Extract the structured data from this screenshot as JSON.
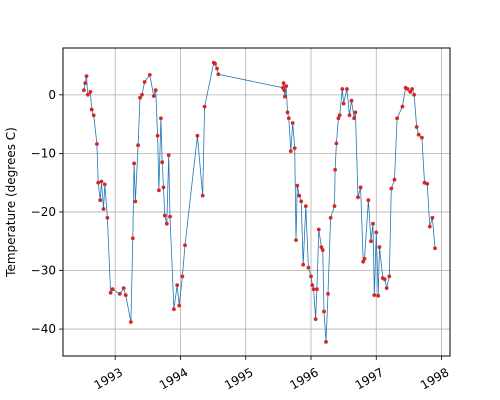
{
  "chart_data": {
    "type": "line",
    "title": "",
    "xlabel": "",
    "ylabel": "Temperature (degrees C)",
    "grid": true,
    "xlim": [
      1992.2,
      1998.13
    ],
    "ylim": [
      -44.6,
      8
    ],
    "x_ticks": [
      {
        "value": 1993,
        "label": "1993"
      },
      {
        "value": 1994,
        "label": "1994"
      },
      {
        "value": 1995,
        "label": "1995"
      },
      {
        "value": 1996,
        "label": "1996"
      },
      {
        "value": 1997,
        "label": "1997"
      },
      {
        "value": 1998,
        "label": "1998"
      }
    ],
    "y_ticks": [
      {
        "value": 0,
        "label": "0"
      },
      {
        "value": -10,
        "label": "−10"
      },
      {
        "value": -20,
        "label": "−20"
      },
      {
        "value": -30,
        "label": "−30"
      },
      {
        "value": -40,
        "label": "−40"
      }
    ],
    "line_color": "#1f77b4",
    "marker_color": "#d62728",
    "series": [
      {
        "x": [
          1992.52,
          1992.54,
          1992.56,
          1992.58,
          1992.62,
          1992.64,
          1992.67,
          1992.72,
          1992.74,
          1992.77,
          1992.79,
          1992.82,
          1992.84,
          1992.88,
          1992.93,
          1992.96,
          1993.07,
          1993.13,
          1993.16,
          1993.24,
          1993.27,
          1993.29,
          1993.31,
          1993.35,
          1993.38,
          1993.41,
          1993.45,
          1993.53,
          1993.59,
          1993.62,
          1993.65,
          1993.67,
          1993.7,
          1993.72,
          1993.74,
          1993.76,
          1993.79,
          1993.82,
          1993.84,
          1993.9,
          1993.95,
          1993.98,
          1994.03,
          1994.07,
          1994.26,
          1994.34,
          1994.37,
          1994.51,
          1994.53,
          1994.56,
          1994.58,
          1995.57,
          1995.58,
          1995.59,
          1995.6,
          1995.62,
          1995.64,
          1995.66,
          1995.69,
          1995.72,
          1995.75,
          1995.77,
          1995.79,
          1995.82,
          1995.85,
          1995.88,
          1995.92,
          1995.96,
          1996.0,
          1996.02,
          1996.04,
          1996.07,
          1996.09,
          1996.12,
          1996.16,
          1996.18,
          1996.2,
          1996.23,
          1996.26,
          1996.3,
          1996.36,
          1996.37,
          1996.39,
          1996.42,
          1996.44,
          1996.48,
          1996.5,
          1996.55,
          1996.59,
          1996.62,
          1996.66,
          1996.68,
          1996.72,
          1996.76,
          1996.8,
          1996.82,
          1996.88,
          1996.92,
          1996.95,
          1996.97,
          1997.0,
          1997.03,
          1997.05,
          1997.1,
          1997.13,
          1997.16,
          1997.2,
          1997.23,
          1997.28,
          1997.32,
          1997.4,
          1997.45,
          1997.48,
          1997.52,
          1997.55,
          1997.58,
          1997.62,
          1997.65,
          1997.7,
          1997.74,
          1997.78,
          1997.82,
          1997.86,
          1997.9
        ],
        "y": [
          0.8,
          2.0,
          3.2,
          0.0,
          0.5,
          -2.5,
          -3.5,
          -8.4,
          -15.0,
          -18.0,
          -14.8,
          -19.5,
          -15.3,
          -21.0,
          -33.8,
          -33.2,
          -34.0,
          -33.0,
          -34.2,
          -38.8,
          -24.5,
          -11.7,
          -18.2,
          -8.6,
          -0.5,
          0.0,
          2.2,
          3.4,
          -0.2,
          0.8,
          -7.0,
          -16.3,
          -4.0,
          -11.5,
          -15.8,
          -20.6,
          -22.0,
          -10.3,
          -20.8,
          -36.6,
          -32.5,
          -36.0,
          -31.0,
          -25.7,
          -7.0,
          -17.2,
          -2.0,
          5.5,
          5.3,
          4.5,
          3.5,
          1.2,
          2.0,
          0.8,
          -0.3,
          1.5,
          -3.0,
          -4.0,
          -9.6,
          -4.8,
          -9.1,
          -24.8,
          -15.5,
          -17.2,
          -18.2,
          -29.0,
          -19.0,
          -29.5,
          -31.0,
          -32.5,
          -33.2,
          -38.3,
          -33.2,
          -23.0,
          -26.0,
          -26.5,
          -37.0,
          -42.2,
          -34.0,
          -21.0,
          -19.0,
          -12.8,
          -8.3,
          -4.0,
          -3.5,
          1.0,
          -1.5,
          1.0,
          -3.5,
          -1.0,
          -4.0,
          -3.0,
          -17.5,
          -15.8,
          -28.5,
          -28.0,
          -18.0,
          -25.0,
          -22.0,
          -34.2,
          -23.5,
          -34.3,
          -26.0,
          -31.3,
          -31.5,
          -33.0,
          -31.0,
          -16.0,
          -14.5,
          -4.0,
          -2.0,
          1.2,
          1.0,
          0.5,
          1.0,
          0.0,
          -5.5,
          -6.8,
          -7.3,
          -15.0,
          -15.2,
          -22.5,
          -21.0,
          -26.2
        ]
      }
    ]
  }
}
